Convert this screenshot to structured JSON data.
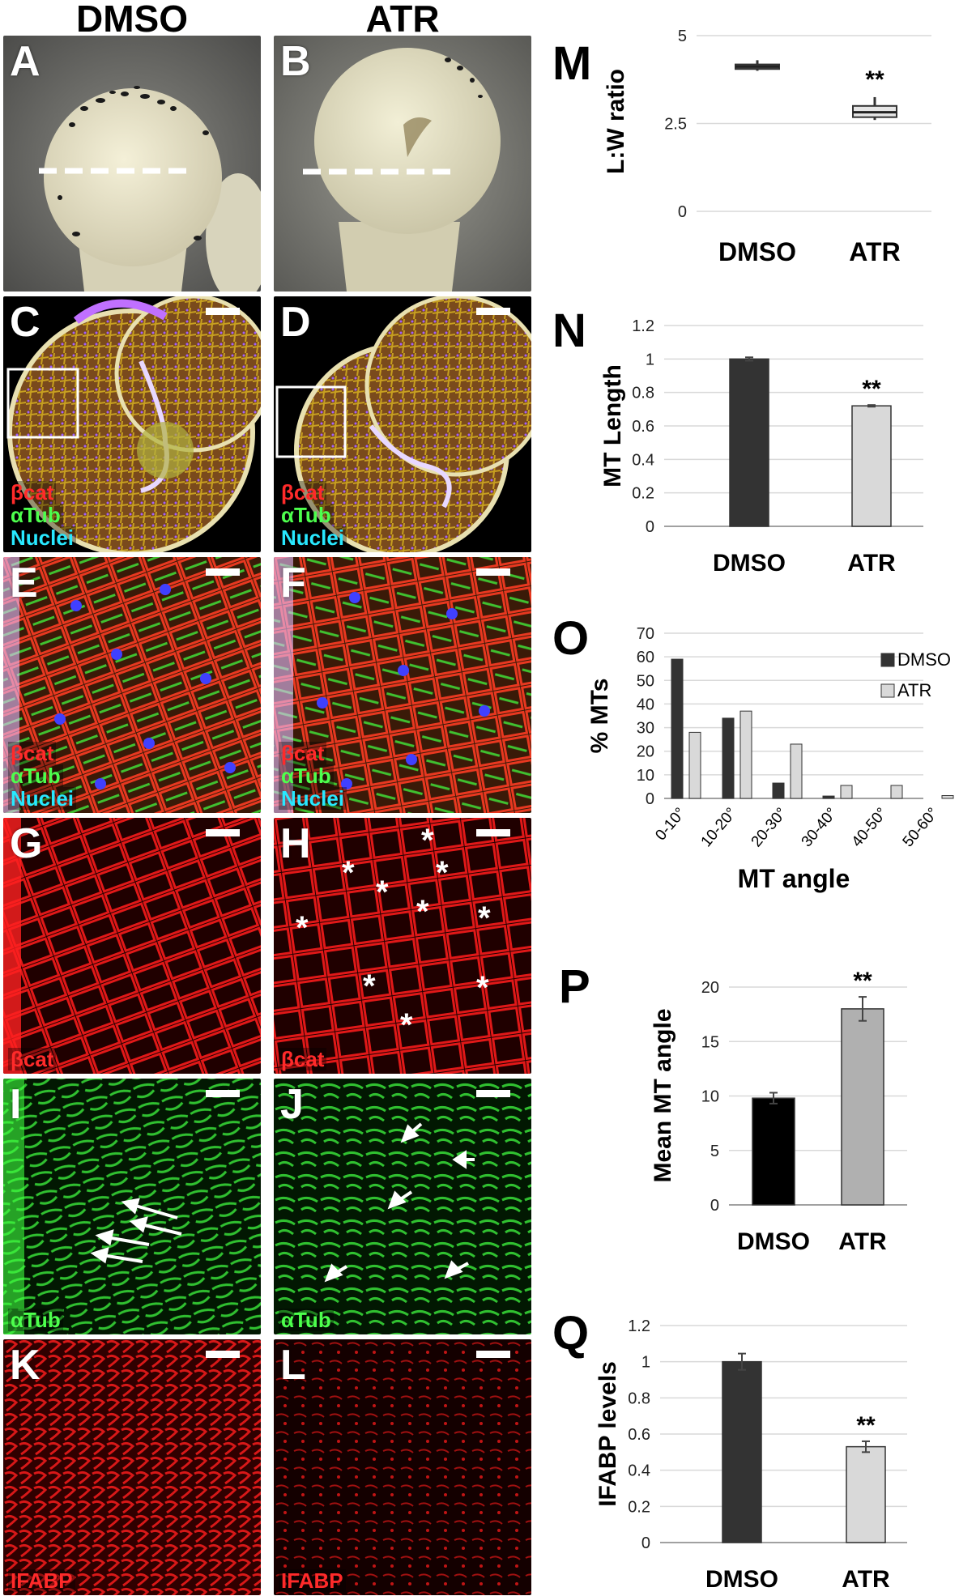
{
  "columns": {
    "left": "DMSO",
    "right": "ATR"
  },
  "panels": {
    "A": {
      "letter": "A"
    },
    "B": {
      "letter": "B"
    },
    "C": {
      "letter": "C",
      "labels": [
        "βcat",
        "αTub",
        "Nuclei"
      ]
    },
    "D": {
      "letter": "D",
      "labels": [
        "βcat",
        "αTub",
        "Nuclei"
      ]
    },
    "E": {
      "letter": "E",
      "labels": [
        "βcat",
        "αTub",
        "Nuclei"
      ]
    },
    "F": {
      "letter": "F",
      "labels": [
        "βcat",
        "αTub",
        "Nuclei"
      ]
    },
    "G": {
      "letter": "G",
      "labels": [
        "βcat"
      ]
    },
    "H": {
      "letter": "H",
      "labels": [
        "βcat"
      ],
      "asterisk": "*"
    },
    "I": {
      "letter": "I",
      "labels": [
        "αTub"
      ]
    },
    "J": {
      "letter": "J",
      "labels": [
        "αTub"
      ]
    },
    "K": {
      "letter": "K",
      "labels": [
        "IFABP"
      ]
    },
    "L": {
      "letter": "L",
      "labels": [
        "IFABP"
      ]
    }
  },
  "colors": {
    "dmso_dark": "#333333",
    "atr_light": "#d9d9d9",
    "p_dmso": "#000000",
    "p_atr": "#b0b0b0",
    "grid": "#d9d9d9",
    "red_stain": "#ff2020",
    "green_stain": "#3ed63e"
  },
  "chart_data": [
    {
      "id": "M",
      "letter": "M",
      "type": "box",
      "ylabel": "L:W ratio",
      "yticks": [
        "5",
        "2.5",
        "0"
      ],
      "ylim": [
        0,
        5
      ],
      "categories": [
        "DMSO",
        "ATR"
      ],
      "boxes": [
        {
          "min": 4.0,
          "q1": 4.05,
          "median": 4.12,
          "q3": 4.18,
          "max": 4.3
        },
        {
          "min": 2.6,
          "q1": 2.68,
          "median": 2.82,
          "q3": 3.0,
          "max": 3.25
        }
      ],
      "significance": [
        "",
        "**"
      ]
    },
    {
      "id": "N",
      "letter": "N",
      "type": "bar",
      "ylabel": "MT Length",
      "yticks": [
        "0",
        "0.2",
        "0.4",
        "0.6",
        "0.8",
        "1",
        "1.2"
      ],
      "ylim": [
        0,
        1.2
      ],
      "categories": [
        "DMSO",
        "ATR"
      ],
      "values": [
        1.0,
        0.72
      ],
      "errors": [
        0.01,
        0.005
      ],
      "significance": [
        "",
        "**"
      ]
    },
    {
      "id": "O",
      "letter": "O",
      "type": "bar",
      "ylabel": "% MTs",
      "xlabel": "MT angle",
      "yticks": [
        "0",
        "10",
        "20",
        "30",
        "40",
        "50",
        "60",
        "70"
      ],
      "ylim": [
        0,
        70
      ],
      "categories": [
        "0-10°",
        "10-20°",
        "20-30°",
        "30-40°",
        "40-50°",
        "50-60°"
      ],
      "series": [
        {
          "name": "DMSO",
          "values": [
            59,
            34,
            6.5,
            1,
            0,
            0
          ]
        },
        {
          "name": "ATR",
          "values": [
            28,
            37,
            23,
            5.5,
            5.5,
            1.2
          ]
        }
      ],
      "legend": "top-right"
    },
    {
      "id": "P",
      "letter": "P",
      "type": "bar",
      "ylabel": "Mean MT angle",
      "yticks": [
        "0",
        "5",
        "10",
        "15",
        "20"
      ],
      "ylim": [
        0,
        20
      ],
      "categories": [
        "DMSO",
        "ATR"
      ],
      "values": [
        9.8,
        18.0
      ],
      "errors": [
        0.5,
        1.1
      ],
      "significance": [
        "",
        "**"
      ]
    },
    {
      "id": "Q",
      "letter": "Q",
      "type": "bar",
      "ylabel": "IFABP levels",
      "yticks": [
        "0",
        "0.2",
        "0.4",
        "0.6",
        "0.8",
        "1",
        "1.2"
      ],
      "ylim": [
        0,
        1.2
      ],
      "categories": [
        "DMSO",
        "ATR"
      ],
      "values": [
        1.0,
        0.53
      ],
      "errors": [
        0.045,
        0.03
      ],
      "significance": [
        "",
        "**"
      ]
    }
  ]
}
